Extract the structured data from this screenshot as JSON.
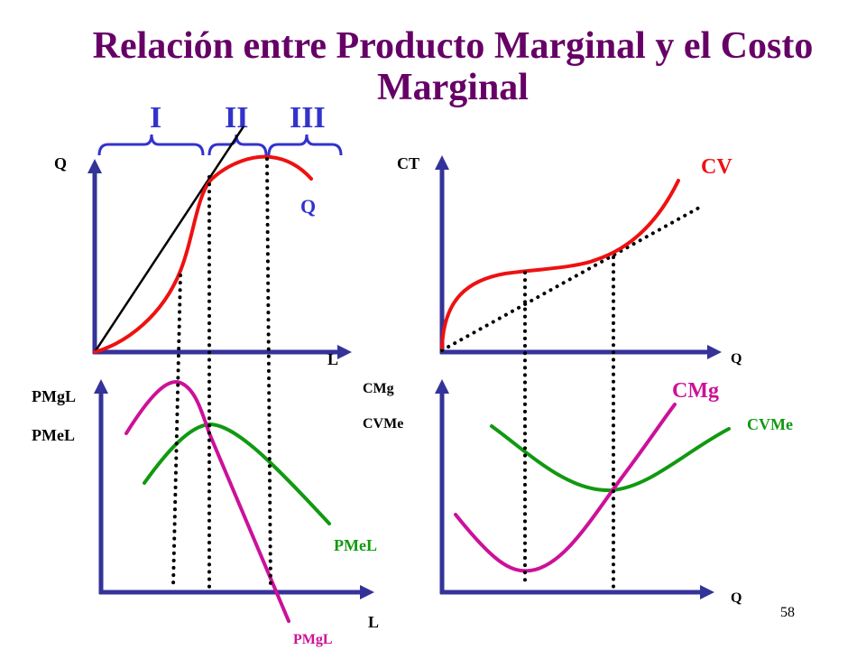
{
  "title": "Relación entre Producto Marginal y el Costo Marginal",
  "stages": {
    "i": "I",
    "ii": "II",
    "iii": "III"
  },
  "diagrams": {
    "production": {
      "y_axis_label": "Q",
      "x_axis_label": "L",
      "curve_label": "Q"
    },
    "total_cost": {
      "y_axis_label": "CT",
      "x_axis_label": "Q",
      "curve_label": "CV"
    },
    "product_curves": {
      "y_axis_labels": [
        "PMgL",
        "PMeL"
      ],
      "x_axis_label": "L",
      "curve_labels": {
        "average": "PMeL",
        "marginal": "PMgL"
      }
    },
    "cost_curves": {
      "y_axis_labels": [
        "CMg",
        "CVMe"
      ],
      "x_axis_label": "Q",
      "curve_labels": {
        "marginal": "CMg",
        "average": "CVMe"
      }
    }
  },
  "slide_number": "58",
  "colors": {
    "title": "#660066",
    "stage": "#3333cc",
    "axis": "#333399",
    "red": "#ee1111",
    "magenta": "#cc1199",
    "green": "#119911"
  }
}
